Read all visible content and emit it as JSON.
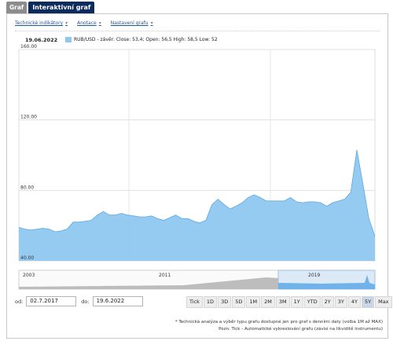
{
  "tabs": {
    "graf": "Graf",
    "interactive": "Interaktivní graf"
  },
  "menu": {
    "technical": "Technické indikátory",
    "annotations": "Anotace",
    "settings": "Nastavení grafu"
  },
  "legend": {
    "date": "19.06.2022",
    "text": "RUB/USD - závěr: Close: 53,4; Open: 56,5 High: 58,5 Low: 52",
    "color": "#8fc7f0"
  },
  "chart_data": {
    "type": "area",
    "y_ticks": [
      "160.00",
      "120.00",
      "80.00",
      "40.00"
    ],
    "ylim": [
      40,
      160
    ],
    "x_range": [
      "2017-07-02",
      "2022-06-19"
    ],
    "x_ticks": [],
    "grid": true,
    "series": [
      {
        "name": "RUB/USD",
        "color": "#8fc7f0",
        "x": [
          "2017-07",
          "2017-08",
          "2017-09",
          "2017-10",
          "2017-11",
          "2017-12",
          "2018-01",
          "2018-02",
          "2018-03",
          "2018-04",
          "2018-05",
          "2018-06",
          "2018-07",
          "2018-08",
          "2018-09",
          "2018-10",
          "2018-11",
          "2018-12",
          "2019-01",
          "2019-02",
          "2019-03",
          "2019-04",
          "2019-05",
          "2019-06",
          "2019-07",
          "2019-08",
          "2019-09",
          "2019-10",
          "2019-11",
          "2019-12",
          "2020-01",
          "2020-02",
          "2020-03",
          "2020-04",
          "2020-05",
          "2020-06",
          "2020-07",
          "2020-08",
          "2020-09",
          "2020-10",
          "2020-11",
          "2020-12",
          "2021-01",
          "2021-02",
          "2021-03",
          "2021-04",
          "2021-05",
          "2021-06",
          "2021-07",
          "2021-08",
          "2021-09",
          "2021-10",
          "2021-11",
          "2021-12",
          "2022-01",
          "2022-02",
          "2022-03",
          "2022-04",
          "2022-05",
          "2022-06"
        ],
        "values": [
          59,
          58,
          57.5,
          58,
          58.5,
          58,
          56.5,
          57,
          58,
          62,
          62,
          62.5,
          63,
          66,
          68,
          66,
          66,
          67,
          66,
          65.5,
          65,
          65,
          65.5,
          64,
          63,
          64.5,
          66,
          64,
          64,
          62.5,
          61.5,
          63,
          72,
          75,
          72,
          69.5,
          71,
          73,
          76,
          77.5,
          76,
          74,
          74,
          74,
          74,
          76,
          73.5,
          73,
          73.5,
          73.5,
          73,
          71,
          73,
          74,
          75,
          79,
          103,
          84,
          64,
          54
        ]
      }
    ]
  },
  "navigator": {
    "labels": [
      "2003",
      "2011",
      "2019"
    ]
  },
  "range": {
    "from_label": "od:",
    "from": "02.7.2017",
    "to_label": "do:",
    "to": "19.6.2022"
  },
  "periods": [
    "Tick",
    "1D",
    "3D",
    "5D",
    "1M",
    "2M",
    "3M",
    "1Y",
    "YTD",
    "2Y",
    "3Y",
    "4Y",
    "5Y",
    "Max"
  ],
  "selected_period": "5Y",
  "footnotes": [
    "* Technická analýza a výběr typu grafu dostupné jen pro graf s denními daty (volba 1M až MAX)",
    "Pozn: Tick - Automatické vykreslování grafu (závisí na likviditě instrumentu)"
  ]
}
